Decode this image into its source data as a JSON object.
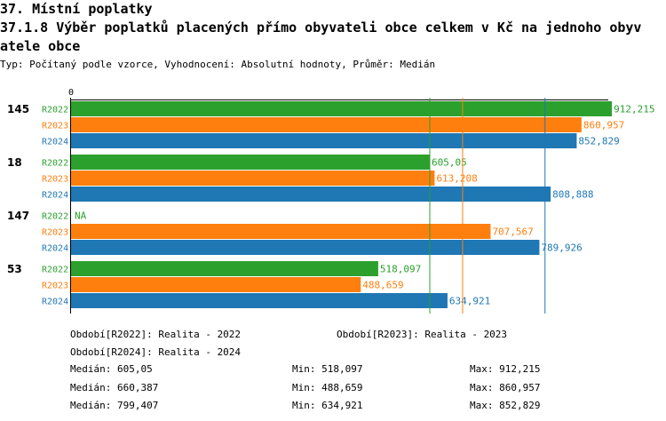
{
  "title_lines": [
    "37. Místní poplatky",
    "37.1.8 Výběr poplatků placených přímo obyvateli obce celkem  v Kč na jednoho obyv",
    "atele obce"
  ],
  "subtitle": "Typ: Počítaný podle vzorce, Vyhodnocení: Absolutní hodnoty, Průměr: Medián",
  "colors": {
    "R2022": "#2ca02c",
    "R2023": "#ff7f0e",
    "R2024": "#1f77b4"
  },
  "chart_data": {
    "type": "bar",
    "orientation": "horizontal",
    "x_origin_label": "0",
    "xlim": [
      0,
      1000
    ],
    "groups": [
      "145",
      "18",
      "147",
      "53"
    ],
    "series": [
      {
        "name": "R2022",
        "values": [
          912.215,
          605.05,
          null,
          518.097
        ],
        "labels": [
          "912,215",
          "605,05",
          "NA",
          "518,097"
        ]
      },
      {
        "name": "R2023",
        "values": [
          860.957,
          613.208,
          707.567,
          488.659
        ],
        "labels": [
          "860,957",
          "613,208",
          "707,567",
          "488,659"
        ]
      },
      {
        "name": "R2024",
        "values": [
          852.829,
          808.888,
          789.926,
          634.921
        ],
        "labels": [
          "852,829",
          "808,888",
          "789,926",
          "634,921"
        ]
      }
    ],
    "reference_lines": [
      {
        "series": "R2022",
        "value": 605.05
      },
      {
        "series": "R2023",
        "value": 660.387
      },
      {
        "series": "R2024",
        "value": 799.407
      }
    ]
  },
  "legend": {
    "R2022": "Období[R2022]: Realita - 2022",
    "R2023": "Období[R2023]: Realita - 2023",
    "R2024": "Období[R2024]: Realita - 2024"
  },
  "stats": [
    {
      "median": "Medián: 605,05",
      "min": "Min: 518,097",
      "max": "Max: 912,215"
    },
    {
      "median": "Medián: 660,387",
      "min": "Min: 488,659",
      "max": "Max: 860,957"
    },
    {
      "median": "Medián: 799,407",
      "min": "Min: 634,921",
      "max": "Max: 852,829"
    }
  ]
}
